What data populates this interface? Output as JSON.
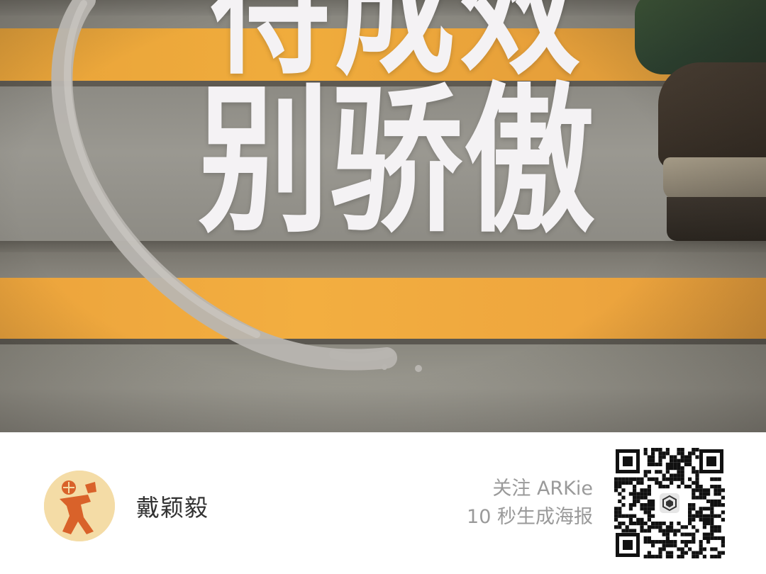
{
  "poster": {
    "headline_line1": "待成效",
    "headline_line2": "别骄傲"
  },
  "footer": {
    "author_name": "戴颖毅",
    "promo_line1": "关注 ARKie",
    "promo_line2": "10 秒生成海报"
  },
  "icons": {
    "avatar": "person-avatar",
    "qr": "qr-code",
    "qr_center": "arkie-logo-icon"
  },
  "colors": {
    "stripe": "#f0ac3c",
    "headline": "#f4f2f4",
    "ring": "#b8b5b0",
    "avatar_bg": "#f4dca6",
    "avatar_figure": "#d9622a"
  }
}
